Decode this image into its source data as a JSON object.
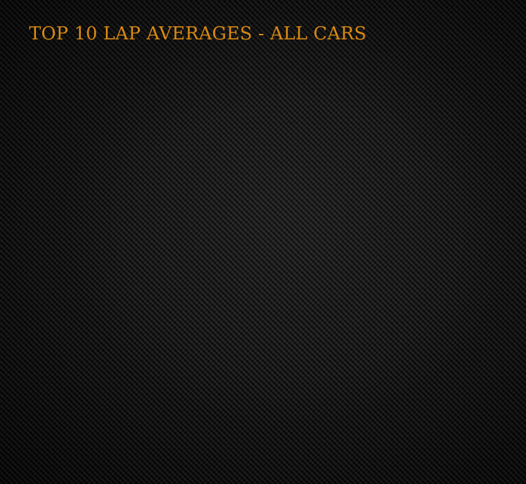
{
  "page": {
    "title": "TOP 10 LAP AVERAGES - ALL CARS"
  },
  "colors": {
    "title": "#d98a12",
    "background": "#141414"
  }
}
